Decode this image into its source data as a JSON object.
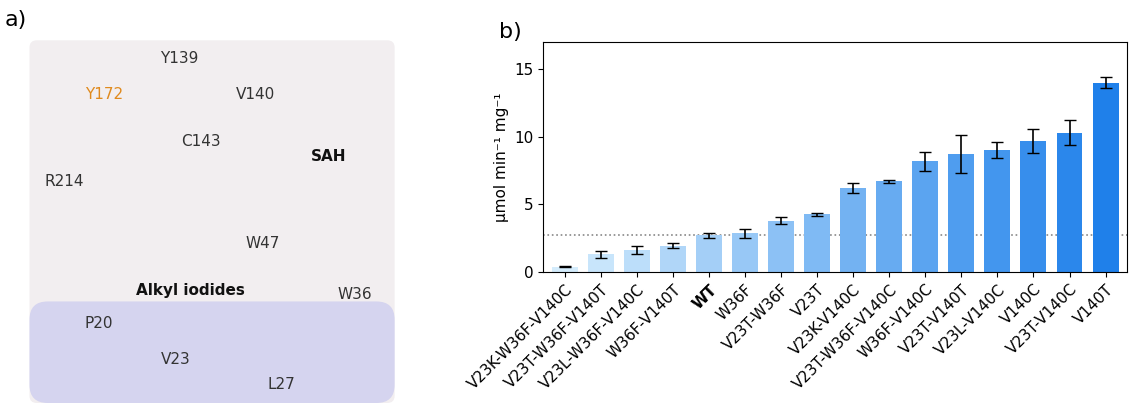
{
  "panel_a": {
    "label": "a)",
    "annotations": [
      {
        "text": "Y172",
        "color": "#e08a1e"
      },
      {
        "text": "Y139",
        "color": "#333333"
      },
      {
        "text": "V140",
        "color": "#333333"
      },
      {
        "text": "C143",
        "color": "#333333"
      },
      {
        "text": "SAH",
        "color": "#111111",
        "weight": "bold"
      },
      {
        "text": "R214",
        "color": "#333333"
      },
      {
        "text": "Alkyl iodides",
        "color": "#111111",
        "weight": "bold"
      },
      {
        "text": "W47",
        "color": "#333333"
      },
      {
        "text": "W36",
        "color": "#333333"
      },
      {
        "text": "P20",
        "color": "#333333"
      },
      {
        "text": "V23",
        "color": "#333333"
      },
      {
        "text": "L27",
        "color": "#333333"
      }
    ]
  },
  "chart_data": {
    "type": "bar",
    "panel_label": "b)",
    "y_label": "µmol min⁻¹ mg⁻¹",
    "categories": [
      "V23K-W36F-V140C",
      "V23T-W36F-V140T",
      "V23L-W36F-V140C",
      "W36F-V140T",
      "WT",
      "W36F",
      "V23T-W36F",
      "V23T",
      "V23K-V140C",
      "V23T-W36F-V140C",
      "W36F-V140C",
      "V23T-V140T",
      "V23L-V140C",
      "V140C",
      "V23T-V140C",
      "V140T"
    ],
    "values": [
      0.4,
      1.3,
      1.6,
      1.95,
      2.7,
      2.85,
      3.8,
      4.25,
      6.2,
      6.7,
      8.2,
      8.75,
      9.0,
      9.7,
      10.3,
      14.0
    ],
    "errors": [
      0.05,
      0.25,
      0.3,
      0.2,
      0.15,
      0.35,
      0.25,
      0.1,
      0.35,
      0.1,
      0.7,
      1.4,
      0.6,
      0.9,
      0.9,
      0.4
    ],
    "reference_line": 2.7,
    "colors": [
      "#d4ecfc",
      "#c8e5fb",
      "#bcdefa",
      "#b0d6f8",
      "#a4cff7",
      "#98c8f6",
      "#8cc1f5",
      "#7fbaf4",
      "#73b2f2",
      "#67abf1",
      "#5ba4f0",
      "#4f9def",
      "#4396ee",
      "#378eec",
      "#2b87eb",
      "#1f80ea"
    ],
    "ylim": [
      0,
      17
    ],
    "yticks": [
      0,
      5,
      10,
      15
    ],
    "grid": false
  }
}
